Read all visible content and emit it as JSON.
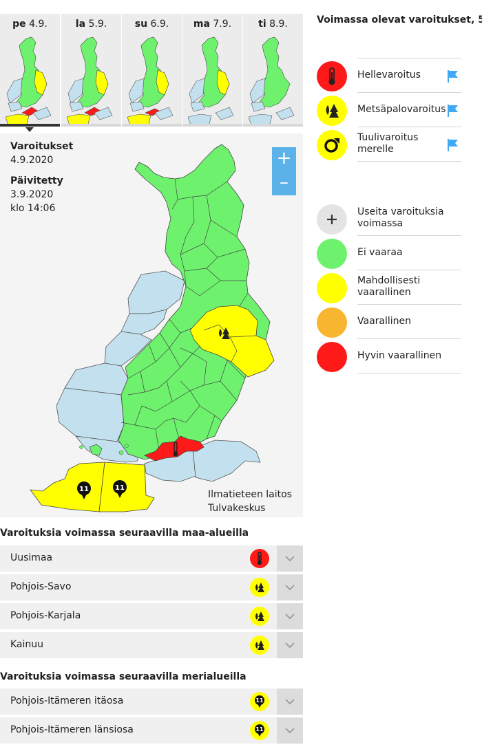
{
  "days": [
    {
      "abbr": "pe",
      "date": "4.9."
    },
    {
      "abbr": "la",
      "date": "5.9."
    },
    {
      "abbr": "su",
      "date": "6.9."
    },
    {
      "abbr": "ma",
      "date": "7.9."
    },
    {
      "abbr": "ti",
      "date": "8.9."
    }
  ],
  "info": {
    "warnings_label": "Varoitukset",
    "warnings_date": "4.9.2020",
    "updated_label": "Päivitetty",
    "updated_date": "3.9.2020",
    "updated_time": "klo 14:06"
  },
  "map": {
    "zoom_in": "+",
    "zoom_out": "–",
    "credit_line1": "Ilmatieteen laitos",
    "credit_line2": "Tulvakeskus",
    "sea_marker_value": "11"
  },
  "legend": {
    "title": "Voimassa olevat varoitukset, 5",
    "warnings": [
      {
        "label": "Hellevaroitus",
        "icon": "thermometer-icon",
        "color": "#ff1a1a"
      },
      {
        "label": "Metsäpalovaroitus",
        "icon": "forest-fire-icon",
        "color": "#ffff00"
      },
      {
        "label": "Tuulivaroitus merelle",
        "icon": "wind-arrow-icon",
        "color": "#ffff00"
      }
    ],
    "levels": [
      {
        "label": "Useita varoituksia voimassa",
        "icon": "plus-icon",
        "color": "#e4e4e4"
      },
      {
        "label": "Ei vaaraa",
        "color": "#6ef26e"
      },
      {
        "label": "Mahdollisesti vaarallinen",
        "color": "#ffff00"
      },
      {
        "label": "Vaarallinen",
        "color": "#f8b630"
      },
      {
        "label": "Hyvin vaarallinen",
        "color": "#ff1a1a"
      }
    ]
  },
  "land_section": {
    "title": "Varoituksia voimassa seuraavilla maa-alueilla",
    "regions": [
      {
        "name": "Uusimaa",
        "icon": "thermometer-icon",
        "color": "#ff1a1a"
      },
      {
        "name": "Pohjois-Savo",
        "icon": "forest-fire-icon",
        "color": "#ffff00"
      },
      {
        "name": "Pohjois-Karjala",
        "icon": "forest-fire-icon",
        "color": "#ffff00"
      },
      {
        "name": "Kainuu",
        "icon": "forest-fire-icon",
        "color": "#ffff00"
      }
    ]
  },
  "sea_section": {
    "title": "Varoituksia voimassa seuraavilla merialueilla",
    "regions": [
      {
        "name": "Pohjois-Itämeren itäosa",
        "icon": "wind-marker-icon",
        "value": "11",
        "color": "#ffff00"
      },
      {
        "name": "Pohjois-Itämeren länsiosa",
        "icon": "wind-marker-icon",
        "value": "11",
        "color": "#ffff00"
      }
    ]
  },
  "colors": {
    "green": "#6ef26e",
    "yellow": "#ffff00",
    "red": "#ff1a1a",
    "sea": "#c3e0ee",
    "flag": "#3fa9f5"
  }
}
